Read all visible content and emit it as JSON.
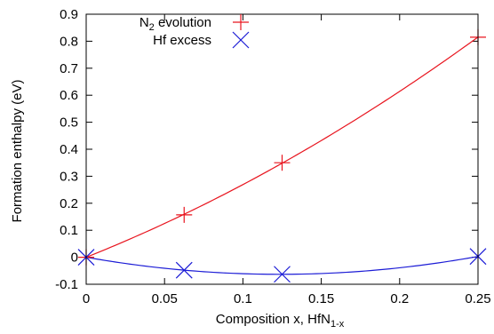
{
  "chart_data": {
    "type": "scatter",
    "xlabel": "Composition x,  HfN",
    "xlabel_sub": "1-x",
    "ylabel": "Formation enthalpy (eV)",
    "xlim": [
      0,
      0.25
    ],
    "ylim": [
      -0.1,
      0.9
    ],
    "x_ticks": [
      "0",
      "0.05",
      "0.1",
      "0.15",
      "0.2",
      "0.25"
    ],
    "y_ticks": [
      "-0.1",
      "0",
      "0.1",
      "0.2",
      "0.3",
      "0.4",
      "0.5",
      "0.6",
      "0.7",
      "0.8",
      "0.9"
    ],
    "grid": false,
    "legend_position": "top-right",
    "series": [
      {
        "name": "N",
        "name_sub": "2",
        "name_suffix": " evolution",
        "marker": "plus",
        "color": "#e8141e",
        "points": [
          [
            0,
            0
          ],
          [
            0.0625,
            0.157
          ],
          [
            0.125,
            0.35
          ],
          [
            0.25,
            0.815
          ]
        ],
        "fit": "quadratic"
      },
      {
        "name": "Hf excess",
        "marker": "cross",
        "color": "#1c1cd6",
        "points": [
          [
            0,
            0
          ],
          [
            0.0625,
            -0.048
          ],
          [
            0.125,
            -0.063
          ],
          [
            0.25,
            0.003
          ]
        ],
        "fit": "quadratic"
      }
    ]
  }
}
